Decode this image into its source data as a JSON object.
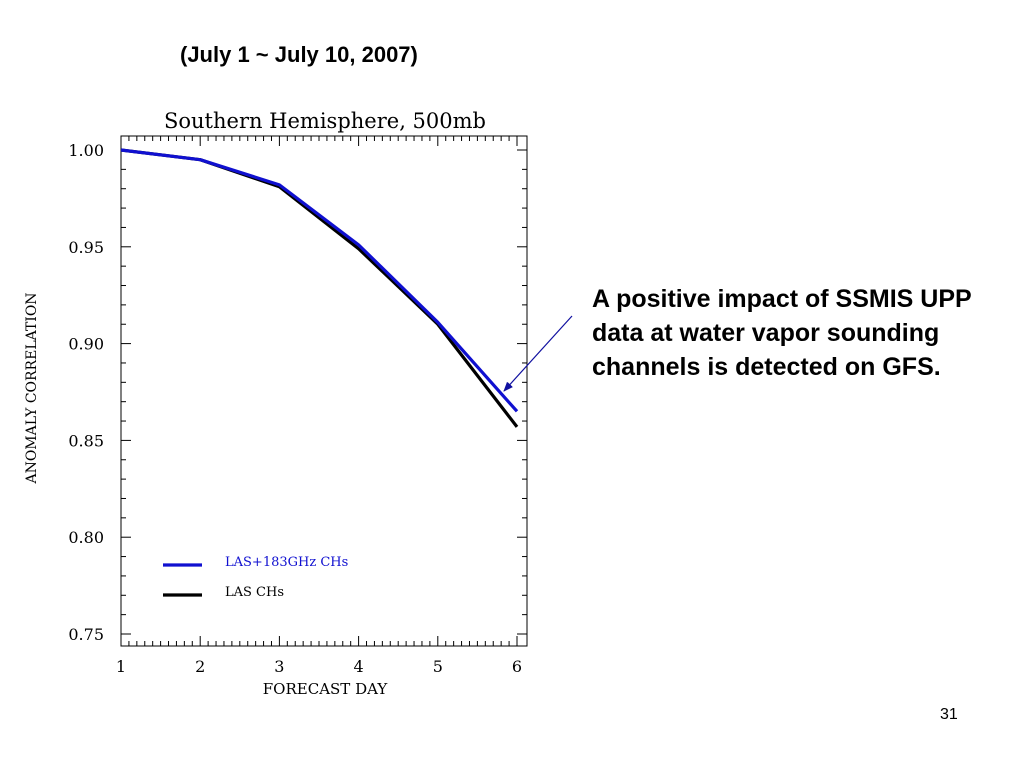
{
  "slide": {
    "subtitle": "(July 1 ~ July 10, 2007)",
    "annotation": "A positive impact of SSMIS UPP data at water vapor sounding channels is detected on GFS.",
    "page_number": "31"
  },
  "chart_data": {
    "type": "line",
    "title": "Southern Hemisphere, 500mb",
    "xlabel": "FORECAST DAY",
    "ylabel": "ANOMALY CORRELATION",
    "x": [
      1,
      2,
      3,
      4,
      5,
      6
    ],
    "xlim": [
      1,
      6
    ],
    "ylim": [
      0.75,
      1.0
    ],
    "xticks": [
      "1",
      "2",
      "3",
      "4",
      "5",
      "6"
    ],
    "yticks": [
      "0.75",
      "0.80",
      "0.85",
      "0.90",
      "0.95",
      "1.00"
    ],
    "grid": false,
    "legend_position": "bottom-left",
    "series": [
      {
        "name": "LAS+183GHz CHs",
        "color": "#1010d0",
        "values": [
          1.0,
          0.995,
          0.982,
          0.951,
          0.911,
          0.865
        ]
      },
      {
        "name": "LAS CHs",
        "color": "#000000",
        "values": [
          1.0,
          0.995,
          0.981,
          0.949,
          0.91,
          0.857
        ]
      }
    ]
  }
}
